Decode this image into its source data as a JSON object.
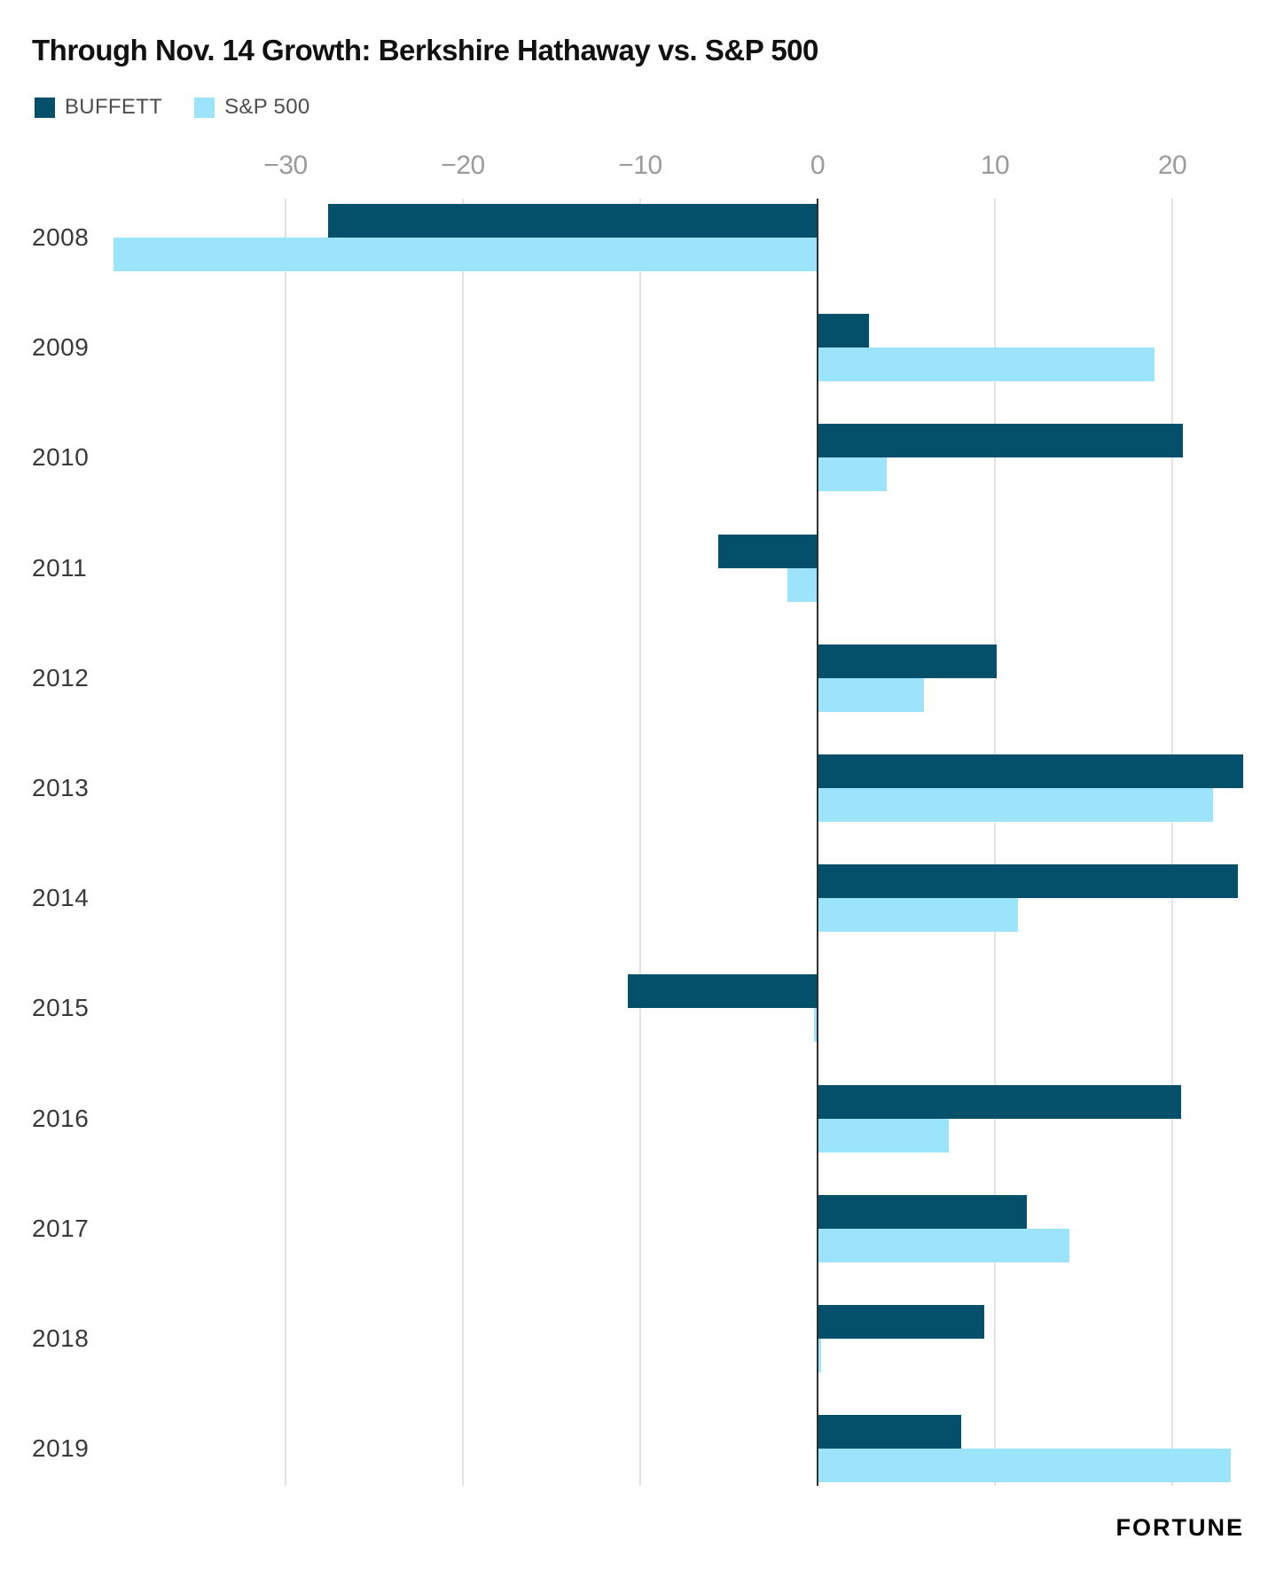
{
  "title": "Through Nov. 14 Growth: Berkshire Hathaway vs. S&P 500",
  "legend": [
    {
      "label": "BUFFETT",
      "color": "#04506A"
    },
    {
      "label": "S&P 500",
      "color": "#9BE4FB"
    }
  ],
  "brand": "FORTUNE",
  "colors": {
    "buffett": "#04506A",
    "sp500": "#9BE4FB",
    "grid": "#e3e3e3",
    "zero_axis": "#303030",
    "tick_label": "#9b9b9b",
    "year_label": "#3a3a3a",
    "title": "#111111"
  },
  "chart_data": {
    "type": "bar",
    "orientation": "horizontal",
    "title": "Through Nov. 14 Growth: Berkshire Hathaway vs. S&P 500",
    "unit": "percent",
    "categories": [
      "2008",
      "2009",
      "2010",
      "2011",
      "2012",
      "2013",
      "2014",
      "2015",
      "2016",
      "2017",
      "2018",
      "2019"
    ],
    "series": [
      {
        "name": "BUFFETT",
        "color": "#04506A",
        "values": [
          -27.6,
          2.9,
          20.6,
          -5.6,
          10.1,
          24.0,
          23.7,
          -10.7,
          20.5,
          11.8,
          9.4,
          8.1
        ]
      },
      {
        "name": "S&P 500",
        "color": "#9BE4FB",
        "values": [
          -39.7,
          19.0,
          3.9,
          -1.7,
          6.0,
          22.3,
          11.3,
          -0.2,
          7.4,
          14.2,
          0.2,
          23.3
        ]
      }
    ],
    "x_axis": {
      "min": -39.7,
      "max": 24.1,
      "ticks": [
        -30,
        -20,
        -10,
        0,
        10,
        20
      ],
      "tick_labels": [
        "−30",
        "−20",
        "−10",
        "0",
        "10",
        "20"
      ],
      "grid": true
    },
    "legend_position": "top-left"
  }
}
